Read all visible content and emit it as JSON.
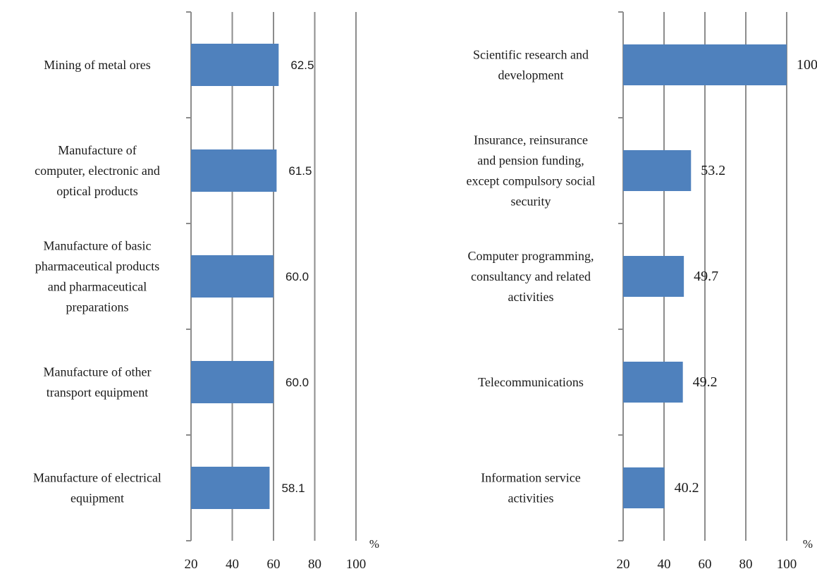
{
  "chart_data": [
    {
      "type": "bar",
      "orientation": "horizontal",
      "categories": [
        [
          "Mining of metal ores"
        ],
        [
          "Manufacture of",
          "computer, electronic and",
          "optical products"
        ],
        [
          "Manufacture of basic",
          "pharmaceutical products",
          "and pharmaceutical",
          "preparations"
        ],
        [
          "Manufacture of other",
          "transport equipment"
        ],
        [
          "Manufacture of electrical",
          "equipment"
        ]
      ],
      "values": [
        62.5,
        61.5,
        60.0,
        60.0,
        58.1
      ],
      "value_labels": [
        "62.5",
        "61.5",
        "60.0",
        "60.0",
        "58.1"
      ],
      "xlim": [
        20,
        100
      ],
      "ticks": [
        "20",
        "40",
        "60",
        "80",
        "100"
      ],
      "unit": "%",
      "grid": true,
      "bar_color": "#4f81bd",
      "grid_color": "#8c8c8c"
    },
    {
      "type": "bar",
      "orientation": "horizontal",
      "categories": [
        [
          "Scientific research and",
          "development"
        ],
        [
          "Insurance, reinsurance",
          "and pension funding,",
          "except compulsory social",
          "security"
        ],
        [
          "Computer programming,",
          "consultancy and related",
          "activities"
        ],
        [
          "Telecommunications"
        ],
        [
          "Information service",
          "activities"
        ]
      ],
      "values": [
        100.0,
        53.2,
        49.7,
        49.2,
        40.2
      ],
      "value_labels": [
        "100.0",
        "53.2",
        "49.7",
        "49.2",
        "40.2"
      ],
      "xlim": [
        20,
        100
      ],
      "ticks": [
        "20",
        "40",
        "60",
        "80",
        "100"
      ],
      "unit": "%",
      "grid": true,
      "bar_color": "#4f81bd",
      "grid_color": "#8c8c8c"
    }
  ]
}
